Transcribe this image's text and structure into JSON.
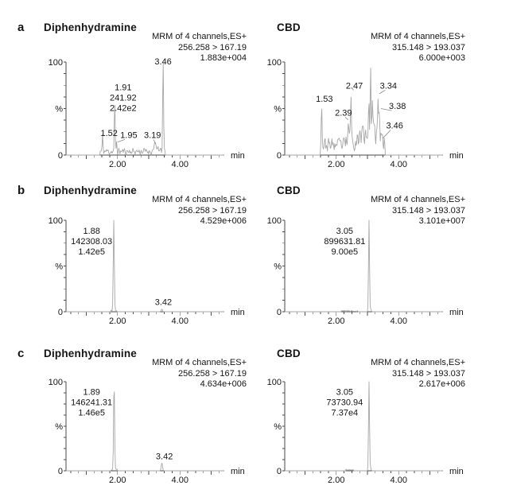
{
  "figure": {
    "rows": [
      {
        "letter": "a"
      },
      {
        "letter": "b"
      },
      {
        "letter": "c"
      }
    ]
  },
  "axis": {
    "y_top_label": "100",
    "y_bottom_label": "0",
    "y_axis_label": "%",
    "x_unit": "min",
    "t_start": 0.35,
    "t_end": 5.42,
    "ylim": [
      0,
      100
    ],
    "x_tick_labels": [
      {
        "t": 2,
        "label": "2.00"
      },
      {
        "t": 4,
        "label": "4.00"
      }
    ]
  },
  "chart_data": [
    {
      "type": "line",
      "row": "a",
      "side": "left",
      "title": "Diphenhydramine",
      "header": [
        "MRM of 4 channels,ES+",
        "256.258 > 167.19",
        "1.883e+004"
      ],
      "labels": [
        {
          "lines": [
            "3.46"
          ],
          "t": 3.46,
          "pct": 106
        },
        {
          "lines": [
            "1.91",
            "241.92",
            "2.42e2"
          ],
          "t": 2.18,
          "pct": 78
        },
        {
          "lines": [
            "1.52"
          ],
          "t": 1.73,
          "pct": 29
        },
        {
          "lines": [
            "1.95"
          ],
          "t": 2.36,
          "pct": 27,
          "leader": {
            "t": 2.0,
            "pct": 14
          }
        },
        {
          "lines": [
            "3.19"
          ],
          "t": 3.12,
          "pct": 27,
          "leader": {
            "t": 3.22,
            "pct": 12
          }
        }
      ],
      "trace": {
        "seed": 11,
        "noise": [
          {
            "from": 1.44,
            "to": 3.53,
            "base": 4,
            "amp": 4.5
          }
        ],
        "peaks": [
          {
            "t": 1.52,
            "h": 16,
            "w": 0.012
          },
          {
            "t": 1.91,
            "h": 52,
            "w": 0.013
          },
          {
            "t": 1.97,
            "h": 10,
            "w": 0.012
          },
          {
            "t": 3.19,
            "h": 9,
            "w": 0.028
          },
          {
            "t": 3.3,
            "h": 5,
            "w": 0.02
          },
          {
            "t": 3.46,
            "h": 96,
            "w": 0.014
          }
        ]
      }
    },
    {
      "type": "line",
      "row": "a",
      "side": "right",
      "title": "CBD",
      "header": [
        "MRM of 4 channels,ES+",
        "315.148 > 193.037",
        "6.000e+003"
      ],
      "labels": [
        {
          "lines": [
            "1.53"
          ],
          "t": 1.62,
          "pct": 66
        },
        {
          "lines": [
            "2.39"
          ],
          "t": 2.23,
          "pct": 51,
          "leader": {
            "t": 2.38,
            "pct": 38
          }
        },
        {
          "lines": [
            "2.47"
          ],
          "t": 2.58,
          "pct": 80,
          "leader": {
            "t": 2.5,
            "pct": 72
          }
        },
        {
          "lines": [
            "3.34"
          ],
          "t": 3.67,
          "pct": 80,
          "leader": {
            "t": 3.38,
            "pct": 66
          }
        },
        {
          "lines": [
            "3.38"
          ],
          "t": 3.96,
          "pct": 58,
          "leader": {
            "t": 3.43,
            "pct": 50
          }
        },
        {
          "lines": [
            "3.46"
          ],
          "t": 3.87,
          "pct": 37,
          "leader": {
            "t": 3.49,
            "pct": 18
          }
        }
      ],
      "trace": {
        "seed": 23,
        "noise": [
          {
            "from": 1.49,
            "to": 2.3,
            "base": 11,
            "amp": 9
          },
          {
            "from": 2.3,
            "to": 2.72,
            "base": 15,
            "amp": 11
          },
          {
            "from": 2.72,
            "to": 3.32,
            "base": 23,
            "amp": 14
          },
          {
            "from": 3.32,
            "to": 3.56,
            "base": 15,
            "amp": 11
          }
        ],
        "peaks": [
          {
            "t": 1.53,
            "h": 48,
            "w": 0.013
          },
          {
            "t": 2.39,
            "h": 24,
            "w": 0.012
          },
          {
            "t": 2.47,
            "h": 52,
            "w": 0.014
          },
          {
            "t": 3.04,
            "h": 28,
            "w": 0.015
          },
          {
            "t": 3.1,
            "h": 72,
            "w": 0.013
          },
          {
            "t": 3.16,
            "h": 30,
            "w": 0.014
          },
          {
            "t": 3.34,
            "h": 42,
            "w": 0.013
          },
          {
            "t": 3.38,
            "h": 30,
            "w": 0.013
          },
          {
            "t": 3.44,
            "h": 10,
            "w": 0.015
          }
        ]
      }
    },
    {
      "type": "line",
      "row": "b",
      "side": "left",
      "title": "Diphenhydramine",
      "header": [
        "MRM of 4 channels,ES+",
        "256.258 > 167.19",
        "4.529e+006"
      ],
      "labels": [
        {
          "lines": [
            "1.88",
            "142308.03",
            "1.42e5"
          ],
          "t": 1.17,
          "pct": 94
        },
        {
          "lines": [
            "3.42"
          ],
          "t": 3.47,
          "pct": 16
        }
      ],
      "trace": {
        "seed": 37,
        "noise": [
          {
            "from": 1.78,
            "to": 1.98,
            "base": 1,
            "amp": 1.2
          }
        ],
        "peaks": [
          {
            "t": 1.88,
            "h": 100,
            "w": 0.016
          },
          {
            "t": 3.42,
            "h": 3,
            "w": 0.02
          }
        ]
      }
    },
    {
      "type": "line",
      "row": "b",
      "side": "right",
      "title": "CBD",
      "header": [
        "MRM of 4 channels,ES+",
        "315.148 > 193.037",
        "3.101e+007"
      ],
      "labels": [
        {
          "lines": [
            "3.05",
            "899631.81",
            "9.00e5"
          ],
          "t": 2.27,
          "pct": 94
        }
      ],
      "trace": {
        "seed": 41,
        "noise": [
          {
            "from": 2.15,
            "to": 2.7,
            "base": 0.8,
            "amp": 0.9
          }
        ],
        "peaks": [
          {
            "t": 3.05,
            "h": 100,
            "w": 0.015
          },
          {
            "t": 3.1,
            "h": 3,
            "w": 0.02
          }
        ]
      }
    },
    {
      "type": "line",
      "row": "c",
      "side": "left",
      "title": "Diphenhydramine",
      "header": [
        "MRM of 4 channels,ES+",
        "256.258 > 167.19",
        "4.634e+006"
      ],
      "labels": [
        {
          "lines": [
            "1.89",
            "146241.31",
            "1.46e5"
          ],
          "t": 1.17,
          "pct": 94
        },
        {
          "lines": [
            "3.42"
          ],
          "t": 3.5,
          "pct": 22
        }
      ],
      "trace": {
        "seed": 53,
        "noise": [
          {
            "from": 1.79,
            "to": 1.99,
            "base": 1,
            "amp": 1.2
          }
        ],
        "peaks": [
          {
            "t": 1.89,
            "h": 100,
            "w": 0.016
          },
          {
            "t": 3.42,
            "h": 9,
            "w": 0.02
          }
        ]
      }
    },
    {
      "type": "line",
      "row": "c",
      "side": "right",
      "title": "CBD",
      "header": [
        "MRM of 4 channels,ES+",
        "315.148 > 193.037",
        "2.617e+006"
      ],
      "labels": [
        {
          "lines": [
            "3.05",
            "73730.94",
            "7.37e4"
          ],
          "t": 2.27,
          "pct": 94
        }
      ],
      "trace": {
        "seed": 67,
        "noise": [
          {
            "from": 2.3,
            "to": 2.55,
            "base": 1,
            "amp": 1
          }
        ],
        "peaks": [
          {
            "t": 3.05,
            "h": 100,
            "w": 0.015
          },
          {
            "t": 3.09,
            "h": 4,
            "w": 0.02
          }
        ]
      }
    }
  ]
}
